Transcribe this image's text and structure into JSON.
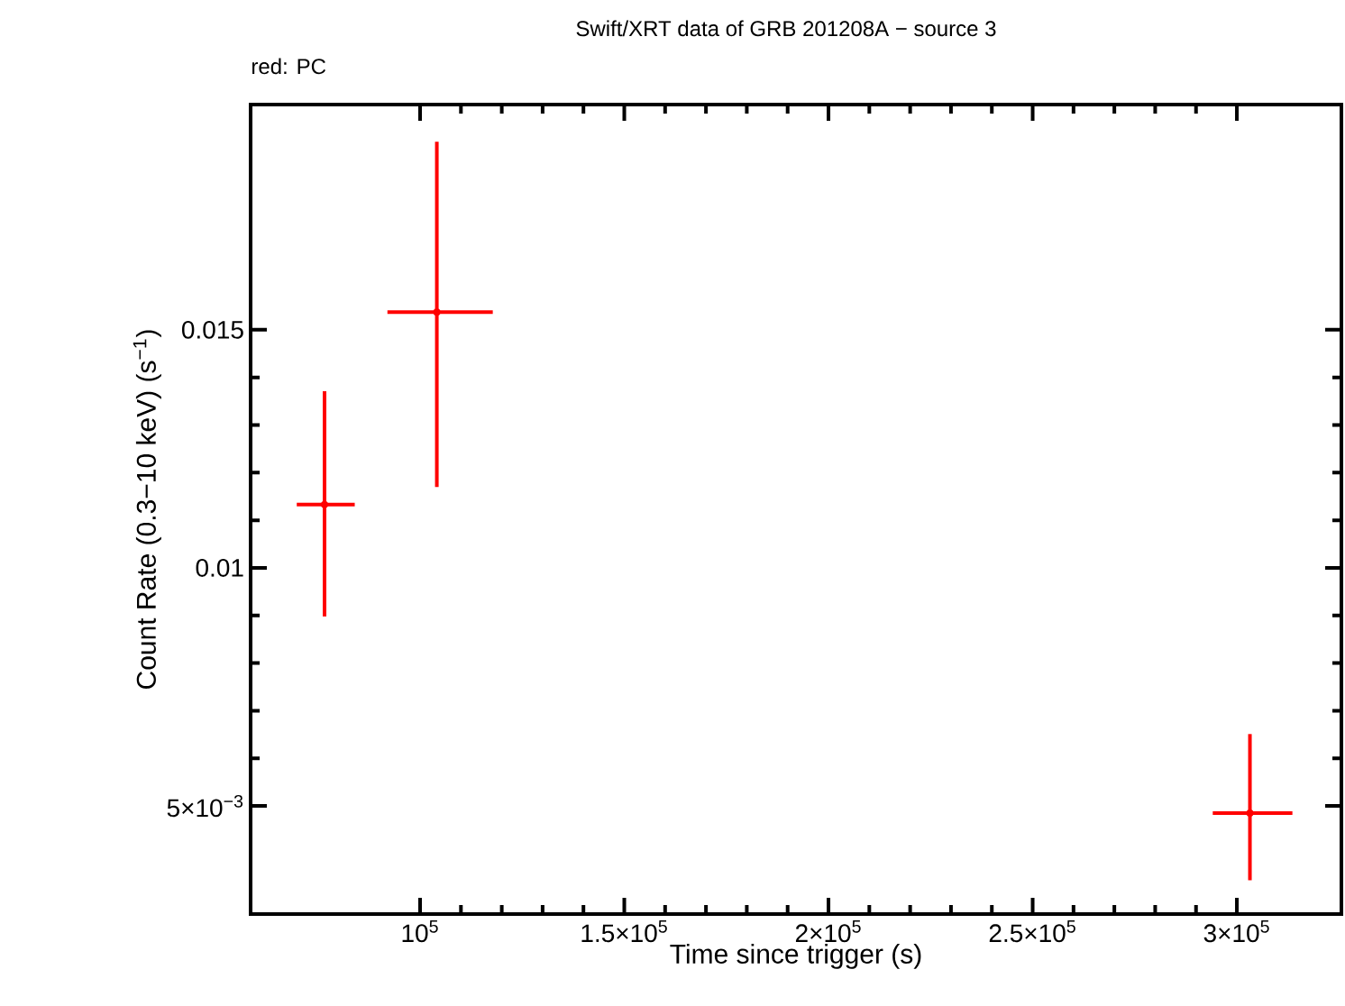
{
  "chart_data": {
    "type": "scatter",
    "title": "Swift/XRT data of GRB 201208A − source 3",
    "subtitle": "red: PC",
    "xlabel": "Time since trigger (s)",
    "ylabel": "Count Rate (0.3−10 keV) (s$^{−1}$)",
    "x": [
      76600,
      104100,
      303200
    ],
    "series": [
      {
        "color": "#ff0000",
        "values": [
          0.01133,
          0.01537,
          0.00485
        ],
        "errors": [
          [
            0.00898,
            0.01371
          ],
          [
            0.0117,
            0.01895
          ],
          [
            0.00344,
            0.00651
          ]
        ],
        "xerrors": [
          [
            69800,
            84000
          ],
          [
            92000,
            117800
          ],
          [
            294100,
            313600
          ]
        ]
      }
    ],
    "xlim": [
      58500,
      325600
    ],
    "ylim": [
      0.00273,
      0.01973
    ],
    "xticks": [
      {
        "value": 100000,
        "label": "10$^{5}$"
      },
      {
        "value": 150000,
        "label": "1.5×10$^{5}$"
      },
      {
        "value": 200000,
        "label": "2×10$^{5}$"
      },
      {
        "value": 250000,
        "label": "2.5×10$^{5}$"
      },
      {
        "value": 300000,
        "label": "3×10$^{5}$"
      }
    ],
    "yticks": [
      {
        "value": 0.005,
        "label": "5×10$^{−3}$"
      },
      0.01,
      0.015
    ],
    "grid": false
  }
}
